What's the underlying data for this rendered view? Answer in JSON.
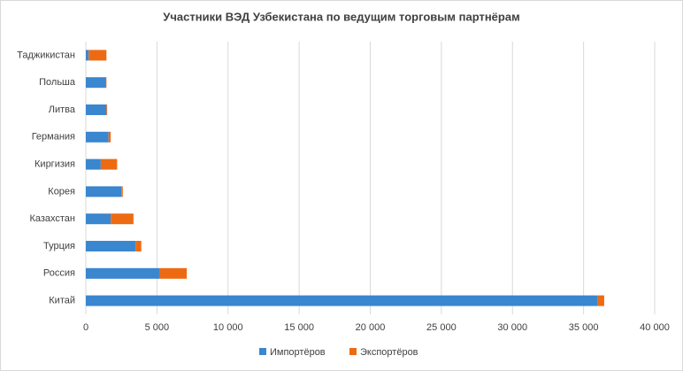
{
  "chart_data": {
    "type": "stacked-barh",
    "title": "Участники ВЭД Узбекистана по ведущим торговым партнёрам",
    "categories": [
      "Китай",
      "Россия",
      "Турция",
      "Казахстан",
      "Корея",
      "Киргизия",
      "Германия",
      "Литва",
      "Польша",
      "Таджикистан"
    ],
    "series": [
      {
        "name": "Импортёров",
        "color": "#3a86cf",
        "values": [
          36000,
          5200,
          3500,
          1750,
          2500,
          1050,
          1600,
          1450,
          1400,
          200
        ]
      },
      {
        "name": "Экспортёров",
        "color": "#ee6a12",
        "values": [
          450,
          1900,
          400,
          1600,
          100,
          1150,
          150,
          50,
          50,
          1250
        ]
      }
    ],
    "xlim": [
      0,
      40000
    ],
    "xticks": [
      0,
      {
        "value": 5000,
        "label": "5 000"
      },
      {
        "value": 10000,
        "label": "10 000"
      },
      {
        "value": 15000,
        "label": "15 000"
      },
      {
        "value": 20000,
        "label": "20 000"
      },
      {
        "value": 25000,
        "label": "25 000"
      },
      {
        "value": 30000,
        "label": "30 000"
      },
      {
        "value": 35000,
        "label": "35 000"
      },
      {
        "value": 40000,
        "label": "40 000"
      }
    ],
    "grid": true,
    "legend": "bottom"
  }
}
